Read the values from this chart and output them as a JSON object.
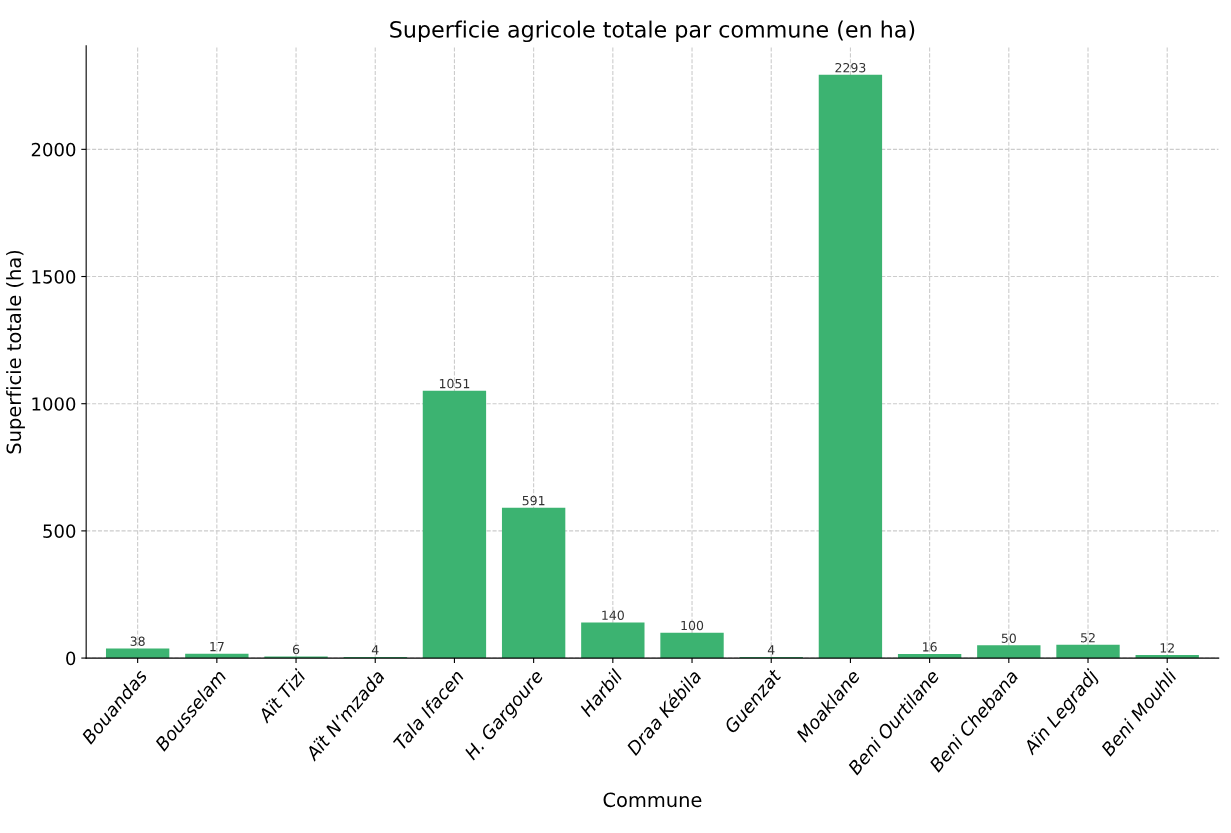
{
  "chart_data": {
    "type": "bar",
    "title": "Superficie agricole totale par commune (en ha)",
    "xlabel": "Commune",
    "ylabel": "Superficie totale (ha)",
    "categories": [
      "Bouandas",
      "Bousselam",
      "Aït Tizi",
      "Aït N’mzada",
      "Tala Ifacen",
      "H. Gargoure",
      "Harbil",
      "Draa Kébila",
      "Guenzat",
      "Moaklane",
      "Beni Ourtilane",
      "Beni Chebana",
      "Aïn Legradj",
      "Beni Mouhli"
    ],
    "values": [
      38,
      17,
      6,
      4,
      1051,
      591,
      140,
      100,
      4,
      2293,
      16,
      50,
      52,
      12
    ],
    "color": "#3cb371",
    "ylim": [
      0,
      2407
    ],
    "yticks": [
      0,
      500,
      1000,
      1500,
      2000
    ],
    "grid": true,
    "data_labels": true
  }
}
